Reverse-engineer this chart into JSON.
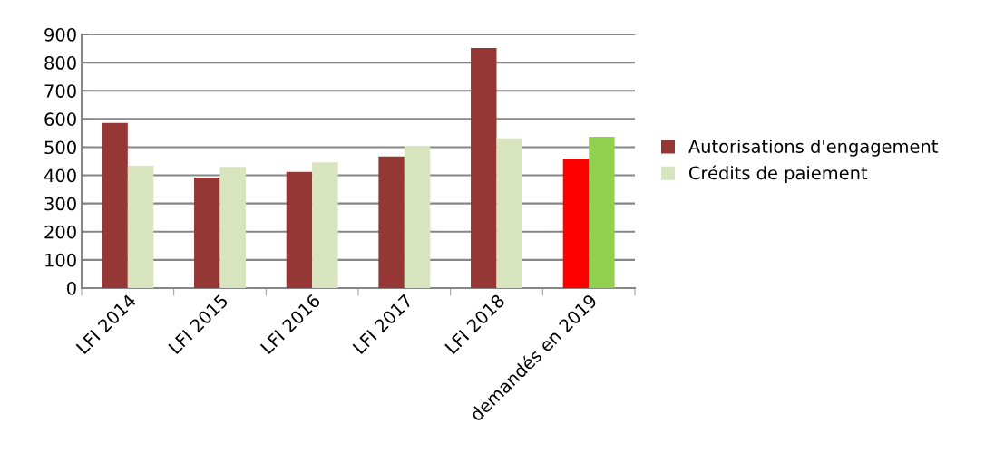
{
  "chart_data": {
    "type": "bar",
    "categories": [
      "LFI 2014",
      "LFI 2015",
      "LFI 2016",
      "LFI 2017",
      "LFI 2018",
      "demandés en 2019"
    ],
    "series": [
      {
        "name": "Autorisations d'engagement",
        "color": "#953735",
        "colors": [
          "#953735",
          "#953735",
          "#953735",
          "#953735",
          "#953735",
          "#ff0000"
        ],
        "values": [
          586,
          392,
          412,
          467,
          852,
          459
        ]
      },
      {
        "name": "Crédits de paiement",
        "color": "#d7e4bd",
        "colors": [
          "#d7e4bd",
          "#d7e4bd",
          "#d7e4bd",
          "#d7e4bd",
          "#d7e4bd",
          "#92d050"
        ],
        "values": [
          434,
          430,
          446,
          505,
          531,
          537
        ]
      }
    ],
    "ylim": [
      0,
      900
    ],
    "yticks": [
      0,
      100,
      200,
      300,
      400,
      500,
      600,
      700,
      800,
      900
    ],
    "grid": "y",
    "legend": "right"
  }
}
